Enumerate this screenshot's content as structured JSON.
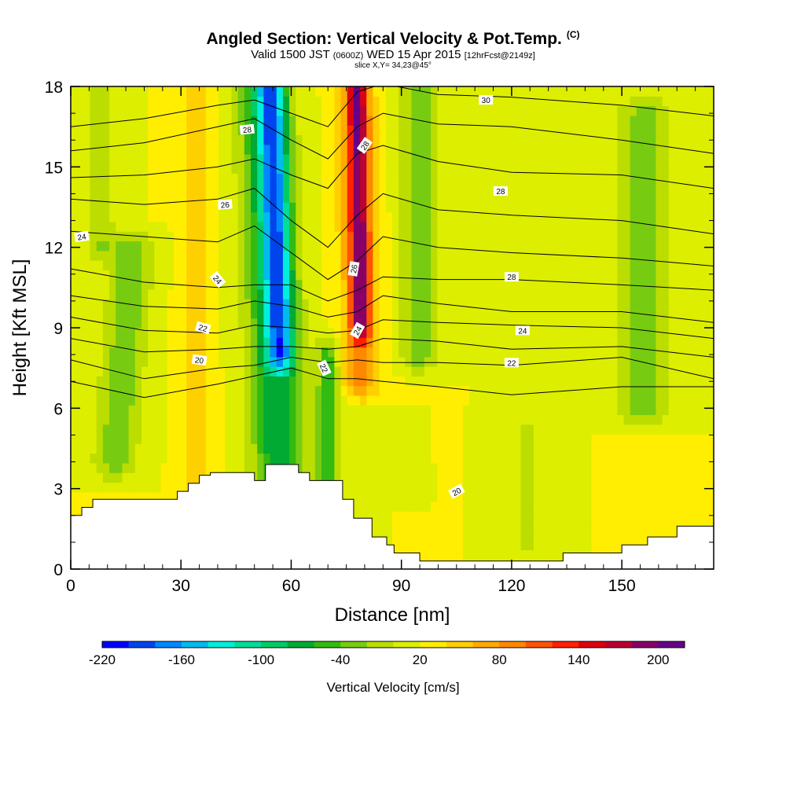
{
  "title": {
    "main": "Angled Section: Vertical Velocity & Pot.Temp.",
    "units": "(C)",
    "valid_prefix": "Valid 1500 JST",
    "valid_utc": "(0600Z)",
    "valid_date": "WED 15 Apr 2015",
    "forecast": "[12hrFcst@2149z]",
    "slice": "slice X,Y= 34,23@45°"
  },
  "chart_data": {
    "type": "heatmap",
    "xlabel": "Distance [nm]",
    "ylabel": "Height [Kft MSL]",
    "xlim": [
      0,
      175
    ],
    "ylim": [
      0,
      18
    ],
    "xticks": [
      0,
      30,
      60,
      90,
      120,
      150
    ],
    "yticks": [
      0,
      3,
      6,
      9,
      12,
      15,
      18
    ],
    "x_tick_labels": [
      "0",
      "30",
      "60",
      "90",
      "120",
      "150"
    ],
    "y_tick_labels": [
      "0",
      "3",
      "6",
      "9",
      "12",
      "15",
      "18"
    ],
    "colorbar": {
      "label": "Vertical Velocity [cm/s]",
      "range": [
        -220,
        220
      ],
      "step": 20,
      "tick_values": [
        -220,
        -160,
        -100,
        -40,
        20,
        80,
        140,
        200
      ],
      "tick_labels": [
        "-220",
        "-160",
        "-100",
        "-40",
        "20",
        "80",
        "140",
        "200"
      ],
      "colors": [
        "#0000ff",
        "#0044ee",
        "#0088ff",
        "#00bbee",
        "#00eedd",
        "#00dd99",
        "#00cc66",
        "#00aa33",
        "#33bb11",
        "#77cc11",
        "#bbdd00",
        "#ddee00",
        "#ffee00",
        "#ffd000",
        "#ffaa00",
        "#ff8800",
        "#ff5500",
        "#ff2200",
        "#dd0011",
        "#bb0033",
        "#880066",
        "#660088"
      ]
    },
    "velocity_field": {
      "background": 20,
      "features": [
        {
          "x": 57,
          "z0": 8,
          "z1": 18,
          "x_shift_per_kft": -0.25,
          "width_nm": 3.5,
          "value": -120
        },
        {
          "x": 57,
          "z0": 3,
          "z1": 18,
          "x_shift_per_kft": -0.3,
          "width_nm": 7,
          "value": -90
        },
        {
          "x": 79,
          "z0": 9,
          "z1": 18,
          "x_shift_per_kft": -0.1,
          "width_nm": 2.5,
          "value": 150
        },
        {
          "x": 79,
          "z0": 7,
          "z1": 18,
          "x_shift_per_kft": -0.15,
          "width_nm": 5,
          "value": 95
        },
        {
          "x": 70,
          "z0": 1,
          "z1": 8,
          "x_shift_per_kft": 0,
          "width_nm": 3,
          "value": -60
        },
        {
          "x": 34,
          "z0": 1,
          "z1": 18,
          "x_shift_per_kft": 0,
          "width_nm": 4,
          "value": 55
        },
        {
          "x": 12,
          "z0": 4,
          "z1": 12,
          "x_shift_per_kft": 0.6,
          "width_nm": 6,
          "value": -40
        },
        {
          "x": 8,
          "z0": 12,
          "z1": 18,
          "x_shift_per_kft": 0,
          "width_nm": 4,
          "value": -20
        },
        {
          "x": 95,
          "z0": 8,
          "z1": 18,
          "x_shift_per_kft": 0,
          "width_nm": 5,
          "value": -45
        },
        {
          "x": 156,
          "z0": 6,
          "z1": 17,
          "x_shift_per_kft": 0,
          "width_nm": 8,
          "value": -35
        },
        {
          "x": 124,
          "z0": 1,
          "z1": 5,
          "x_shift_per_kft": 0,
          "width_nm": 3,
          "value": -15
        }
      ]
    },
    "terrain_kft": [
      {
        "x": 0,
        "h": 2.0
      },
      {
        "x": 3,
        "h": 2.3
      },
      {
        "x": 6,
        "h": 2.6
      },
      {
        "x": 10,
        "h": 2.6
      },
      {
        "x": 24,
        "h": 2.6
      },
      {
        "x": 26,
        "h": 2.6
      },
      {
        "x": 29,
        "h": 2.9
      },
      {
        "x": 32,
        "h": 3.2
      },
      {
        "x": 35,
        "h": 3.5
      },
      {
        "x": 38,
        "h": 3.6
      },
      {
        "x": 48,
        "h": 3.6
      },
      {
        "x": 50,
        "h": 3.3
      },
      {
        "x": 53,
        "h": 3.9
      },
      {
        "x": 58,
        "h": 3.9
      },
      {
        "x": 62,
        "h": 3.6
      },
      {
        "x": 65,
        "h": 3.3
      },
      {
        "x": 71,
        "h": 3.3
      },
      {
        "x": 74,
        "h": 2.6
      },
      {
        "x": 77,
        "h": 1.9
      },
      {
        "x": 82,
        "h": 1.2
      },
      {
        "x": 86,
        "h": 0.9
      },
      {
        "x": 88,
        "h": 0.6
      },
      {
        "x": 95,
        "h": 0.3
      },
      {
        "x": 130,
        "h": 0.3
      },
      {
        "x": 134,
        "h": 0.6
      },
      {
        "x": 143,
        "h": 0.6
      },
      {
        "x": 150,
        "h": 0.9
      },
      {
        "x": 157,
        "h": 1.2
      },
      {
        "x": 165,
        "h": 1.6
      },
      {
        "x": 175,
        "h": 1.6
      }
    ],
    "potential_temperature": {
      "unit": "C",
      "contours": [
        {
          "value": 30,
          "profile": [
            [
              0,
              16.5
            ],
            [
              20,
              16.8
            ],
            [
              40,
              17.3
            ],
            [
              50,
              17.5
            ],
            [
              60,
              17.0
            ],
            [
              70,
              16.5
            ],
            [
              78,
              17.8
            ],
            [
              85,
              18.1
            ],
            [
              100,
              17.7
            ],
            [
              120,
              17.6
            ],
            [
              150,
              17.3
            ],
            [
              175,
              16.9
            ]
          ]
        },
        {
          "value": 28,
          "profile": [
            [
              0,
              15.6
            ],
            [
              20,
              15.9
            ],
            [
              40,
              16.5
            ],
            [
              50,
              16.8
            ],
            [
              60,
              16.0
            ],
            [
              70,
              15.3
            ],
            [
              78,
              16.5
            ],
            [
              85,
              17.0
            ],
            [
              100,
              16.6
            ],
            [
              120,
              16.5
            ],
            [
              150,
              16.0
            ],
            [
              175,
              15.5
            ]
          ]
        },
        {
          "value": 28,
          "profile": [
            [
              0,
              14.6
            ],
            [
              20,
              14.7
            ],
            [
              40,
              15.0
            ],
            [
              50,
              15.3
            ],
            [
              60,
              14.7
            ],
            [
              70,
              14.2
            ],
            [
              78,
              15.5
            ],
            [
              85,
              15.8
            ],
            [
              100,
              15.2
            ],
            [
              120,
              14.8
            ],
            [
              150,
              14.7
            ],
            [
              175,
              14.2
            ]
          ]
        },
        {
          "value": 26,
          "profile": [
            [
              0,
              13.8
            ],
            [
              20,
              13.6
            ],
            [
              40,
              13.8
            ],
            [
              50,
              14.2
            ],
            [
              60,
              13.0
            ],
            [
              70,
              12.0
            ],
            [
              78,
              13.2
            ],
            [
              85,
              14.0
            ],
            [
              100,
              13.4
            ],
            [
              120,
              13.2
            ],
            [
              150,
              13.0
            ],
            [
              175,
              12.5
            ]
          ]
        },
        {
          "value": 24,
          "profile": [
            [
              0,
              12.6
            ],
            [
              20,
              12.4
            ],
            [
              40,
              12.2
            ],
            [
              50,
              12.8
            ],
            [
              60,
              11.8
            ],
            [
              70,
              10.8
            ],
            [
              78,
              11.5
            ],
            [
              85,
              12.4
            ],
            [
              100,
              12.0
            ],
            [
              120,
              11.8
            ],
            [
              150,
              11.6
            ],
            [
              175,
              11.3
            ]
          ]
        },
        {
          "value": 24,
          "profile": [
            [
              0,
              11.2
            ],
            [
              20,
              10.7
            ],
            [
              40,
              10.5
            ],
            [
              50,
              10.6
            ],
            [
              60,
              10.6
            ],
            [
              70,
              10.0
            ],
            [
              78,
              10.4
            ],
            [
              85,
              10.9
            ],
            [
              100,
              10.8
            ],
            [
              120,
              10.8
            ],
            [
              150,
              10.6
            ],
            [
              175,
              10.4
            ]
          ]
        },
        {
          "value": 24,
          "profile": [
            [
              0,
              10.2
            ],
            [
              20,
              9.8
            ],
            [
              40,
              9.7
            ],
            [
              50,
              10.0
            ],
            [
              60,
              9.8
            ],
            [
              70,
              9.4
            ],
            [
              78,
              9.6
            ],
            [
              85,
              10.2
            ],
            [
              100,
              9.9
            ],
            [
              120,
              9.6
            ],
            [
              150,
              9.6
            ],
            [
              175,
              9.2
            ]
          ]
        },
        {
          "value": 24,
          "profile": [
            [
              0,
              9.4
            ],
            [
              20,
              8.9
            ],
            [
              40,
              8.8
            ],
            [
              50,
              9.1
            ],
            [
              60,
              9.0
            ],
            [
              70,
              8.8
            ],
            [
              78,
              8.9
            ],
            [
              85,
              9.3
            ],
            [
              100,
              9.2
            ],
            [
              120,
              9.1
            ],
            [
              150,
              9.0
            ],
            [
              175,
              8.6
            ]
          ]
        },
        {
          "value": 22,
          "profile": [
            [
              0,
              8.6
            ],
            [
              20,
              8.1
            ],
            [
              40,
              8.2
            ],
            [
              50,
              8.3
            ],
            [
              60,
              8.3
            ],
            [
              70,
              8.2
            ],
            [
              78,
              8.3
            ],
            [
              85,
              8.6
            ],
            [
              100,
              8.5
            ],
            [
              120,
              8.2
            ],
            [
              150,
              8.3
            ],
            [
              175,
              7.9
            ]
          ]
        },
        {
          "value": 22,
          "profile": [
            [
              0,
              7.8
            ],
            [
              20,
              7.1
            ],
            [
              40,
              7.5
            ],
            [
              50,
              7.6
            ],
            [
              60,
              7.9
            ],
            [
              70,
              7.7
            ],
            [
              78,
              7.8
            ],
            [
              85,
              7.7
            ],
            [
              100,
              7.7
            ],
            [
              120,
              7.6
            ],
            [
              150,
              7.9
            ],
            [
              175,
              7.1
            ]
          ]
        },
        {
          "value": 20,
          "profile": [
            [
              0,
              7.0
            ],
            [
              20,
              6.4
            ],
            [
              40,
              6.9
            ],
            [
              50,
              7.2
            ],
            [
              60,
              7.5
            ],
            [
              70,
              7.1
            ],
            [
              78,
              7.1
            ],
            [
              85,
              7.0
            ],
            [
              100,
              6.8
            ],
            [
              120,
              6.5
            ],
            [
              150,
              6.8
            ],
            [
              175,
              6.8
            ]
          ]
        }
      ],
      "labels": [
        {
          "text": "30",
          "x": 113,
          "z": 17.5,
          "angle": 0
        },
        {
          "text": "28",
          "x": 48,
          "z": 16.4,
          "angle": -6
        },
        {
          "text": "28",
          "x": 80,
          "z": 15.8,
          "angle": -55
        },
        {
          "text": "28",
          "x": 117,
          "z": 14.1,
          "angle": 0
        },
        {
          "text": "26",
          "x": 42,
          "z": 13.6,
          "angle": -5
        },
        {
          "text": "24",
          "x": 3,
          "z": 12.4,
          "angle": -8
        },
        {
          "text": "24",
          "x": 40,
          "z": 10.8,
          "angle": 50
        },
        {
          "text": "26",
          "x": 77,
          "z": 11.2,
          "angle": -80
        },
        {
          "text": "28",
          "x": 120,
          "z": 10.9,
          "angle": 0
        },
        {
          "text": "22",
          "x": 36,
          "z": 9.0,
          "angle": 15
        },
        {
          "text": "24",
          "x": 78,
          "z": 8.9,
          "angle": -60
        },
        {
          "text": "24",
          "x": 123,
          "z": 8.9,
          "angle": 0
        },
        {
          "text": "20",
          "x": 35,
          "z": 7.8,
          "angle": 8
        },
        {
          "text": "22",
          "x": 69,
          "z": 7.5,
          "angle": 65
        },
        {
          "text": "22",
          "x": 120,
          "z": 7.7,
          "angle": 0
        },
        {
          "text": "20",
          "x": 105,
          "z": 2.9,
          "angle": -30
        }
      ]
    }
  }
}
